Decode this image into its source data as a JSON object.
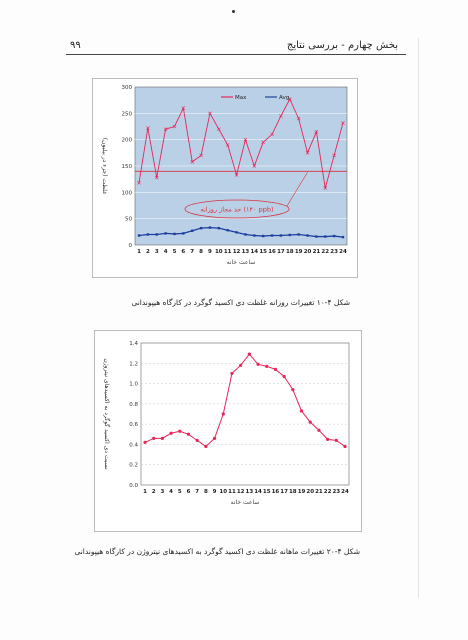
{
  "header": {
    "title": "بخش چهارم - بررسی نتایج",
    "page_number": "۹۹"
  },
  "colors": {
    "plot_bg": "#b9d0e6",
    "max_line": "#e8265a",
    "avg_line": "#1d3f9e",
    "threshold": "#d8343f",
    "curve2": "#e8265a"
  },
  "captions": {
    "fig1": "شکل ۴-۱۰ تغییرات روزانه غلظت دی اکسید گوگرد در کارگاه هیپوندانی",
    "fig2": "شکل ۴-۲۰ تغییرات ماهانه غلظت دی اکسید گوگرد به اکسیدهای نیتروژن در کارگاه هیپوندانی"
  },
  "chart_data": [
    {
      "type": "line",
      "ylabel": "غلظت (جزء در بیلیون)",
      "xlabel": "ساعت خانه",
      "ylim": [
        0,
        300
      ],
      "yticks": [
        "0",
        "50",
        "100",
        "150",
        "200",
        "250",
        "300"
      ],
      "x": [
        1,
        2,
        3,
        4,
        5,
        6,
        7,
        8,
        9,
        10,
        11,
        12,
        13,
        14,
        15,
        16,
        17,
        18,
        19,
        20,
        21,
        22,
        23,
        24
      ],
      "xticks": [
        "1",
        "2",
        "3",
        "4",
        "5",
        "6",
        "7",
        "8",
        "9",
        "10",
        "11",
        "12",
        "13",
        "14",
        "15",
        "16",
        "17",
        "18",
        "19",
        "20",
        "21",
        "22",
        "23",
        "24"
      ],
      "series": [
        {
          "name": "Max",
          "values": [
            118,
            222,
            128,
            220,
            225,
            260,
            158,
            170,
            250,
            220,
            190,
            133,
            200,
            150,
            195,
            210,
            245,
            277,
            240,
            175,
            215,
            108,
            170,
            232
          ]
        },
        {
          "name": "Avg",
          "values": [
            18,
            20,
            20,
            22,
            21,
            22,
            27,
            32,
            33,
            32,
            28,
            24,
            20,
            18,
            17,
            18,
            18,
            19,
            20,
            18,
            16,
            16,
            17,
            15
          ]
        }
      ],
      "threshold": {
        "value": 140,
        "label": "حد مجاز روزانه (۱۴۰ ppb)"
      },
      "legend": "top-center",
      "grid": true
    },
    {
      "type": "line",
      "ylabel": "نسبت دی اکسید گوگرد به اکسیدهای نیتروژن",
      "xlabel": "ساعت خانه",
      "ylim": [
        0,
        1.4
      ],
      "yticks": [
        "0.0",
        "0.2",
        "0.4",
        "0.6",
        "0.8",
        "1.0",
        "1.2",
        "1.4"
      ],
      "x": [
        1,
        2,
        3,
        4,
        5,
        6,
        7,
        8,
        9,
        10,
        11,
        12,
        13,
        14,
        15,
        16,
        17,
        18,
        19,
        20,
        21,
        22,
        23,
        24
      ],
      "xticks": [
        "1",
        "2",
        "3",
        "4",
        "5",
        "6",
        "7",
        "8",
        "9",
        "10",
        "11",
        "12",
        "13",
        "14",
        "15",
        "16",
        "17",
        "18",
        "19",
        "20",
        "21",
        "22",
        "23",
        "24"
      ],
      "series": [
        {
          "values": [
            0.42,
            0.46,
            0.46,
            0.51,
            0.53,
            0.5,
            0.44,
            0.38,
            0.46,
            0.7,
            1.1,
            1.18,
            1.29,
            1.19,
            1.17,
            1.14,
            1.07,
            0.94,
            0.73,
            0.62,
            0.54,
            0.45,
            0.44,
            0.38
          ]
        }
      ],
      "grid": true
    }
  ]
}
